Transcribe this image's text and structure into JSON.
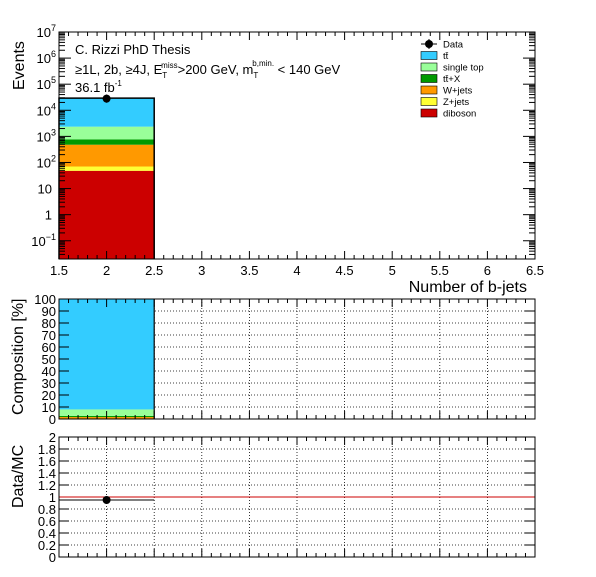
{
  "chart_data": [
    {
      "type": "bar",
      "stacked": true,
      "yscale": "log",
      "title": "C. Rizzi PhD Thesis",
      "subtitle_parts": {
        "base": "≥1L, 2b, ≥4J, E",
        "et_sub": "T",
        "et_sup": "miss",
        "mid": ">200 GeV, m",
        "mt_sub": "T",
        "mt_sup": "b,min.",
        "end": " < 140 GeV"
      },
      "lumi": "36.1 fb",
      "lumi_sup": "-1",
      "xlabel": "Number of b-jets",
      "ylabel": "Events",
      "xlim": [
        1.5,
        6.5
      ],
      "ylim": [
        0.02,
        10000000
      ],
      "x_ticks": [
        "1.5",
        "2",
        "2.5",
        "3",
        "3.5",
        "4",
        "4.5",
        "5",
        "5.5",
        "6",
        "6.5"
      ],
      "y_ticks": [
        {
          "value": 0.1,
          "base": "10",
          "exp": "−1"
        },
        {
          "value": 1,
          "base": "1",
          "exp": ""
        },
        {
          "value": 10,
          "base": "10",
          "exp": ""
        },
        {
          "value": 100,
          "base": "10",
          "exp": "2"
        },
        {
          "value": 1000,
          "base": "10",
          "exp": "3"
        },
        {
          "value": 10000,
          "base": "10",
          "exp": "4"
        },
        {
          "value": 100000,
          "base": "10",
          "exp": "5"
        },
        {
          "value": 1000000,
          "base": "10",
          "exp": "6"
        },
        {
          "value": 10000000,
          "base": "10",
          "exp": "7"
        }
      ],
      "bin": [
        1.5,
        2.5
      ],
      "series": [
        {
          "name": "diboson",
          "color": "#cc0000",
          "value": 48
        },
        {
          "name": "Z+jets",
          "color": "#ffff33",
          "value": 22
        },
        {
          "name": "W+jets",
          "color": "#ff9900",
          "value": 410
        },
        {
          "name": "tt̄+X",
          "color": "#009900",
          "value": 280
        },
        {
          "name": "single top",
          "color": "#99ff99",
          "value": 1600
        },
        {
          "name": "tt̄",
          "color": "#33ccff",
          "value": 27000
        }
      ],
      "data_point": {
        "name": "Data",
        "x": 2,
        "y": 28000
      },
      "legend_placement": "top-right"
    },
    {
      "type": "bar",
      "stacked": true,
      "ylabel": "Composition [%]",
      "ylim": [
        0,
        100
      ],
      "y_ticks": [
        "0",
        "10",
        "20",
        "30",
        "40",
        "50",
        "60",
        "70",
        "80",
        "90",
        "100"
      ],
      "grid": true,
      "series": [
        {
          "name": "diboson",
          "color": "#cc0000",
          "value": 0.16
        },
        {
          "name": "Z+jets",
          "color": "#ffff33",
          "value": 0.07
        },
        {
          "name": "W+jets",
          "color": "#ff9900",
          "value": 1.4
        },
        {
          "name": "tt̄+X",
          "color": "#009900",
          "value": 0.95
        },
        {
          "name": "single top",
          "color": "#99ff99",
          "value": 5.4
        },
        {
          "name": "tt̄",
          "color": "#33ccff",
          "value": 92.02
        }
      ]
    },
    {
      "type": "scatter",
      "ylabel": "Data/MC",
      "ylim": [
        0,
        2
      ],
      "y_ticks": [
        "0",
        "0.2",
        "0.4",
        "0.6",
        "0.8",
        "1",
        "1.2",
        "1.4",
        "1.6",
        "1.8",
        "2"
      ],
      "grid": true,
      "reference_line": 1,
      "reference_color": "#cc0000",
      "points": [
        {
          "x": 2,
          "y": 0.95,
          "x_err": [
            1.5,
            2.5
          ]
        }
      ]
    }
  ]
}
